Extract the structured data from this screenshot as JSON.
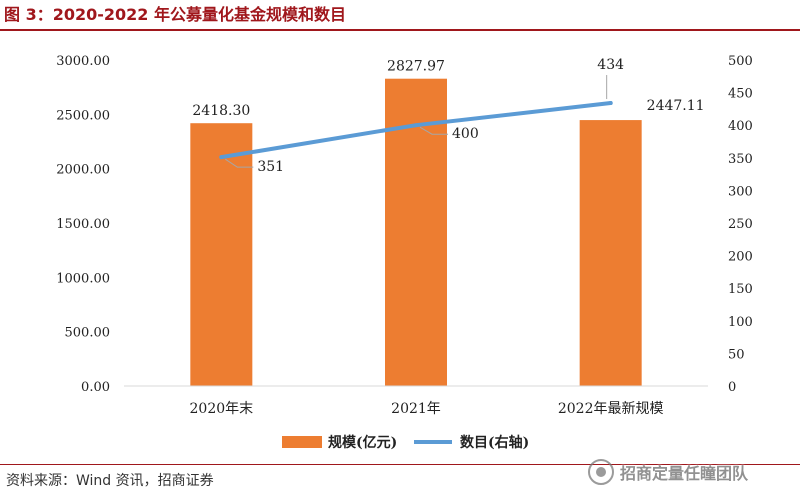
{
  "figure": {
    "title": "图 3：2020-2022 年公募量化基金规模和数目",
    "source": "资料来源：Wind 资讯，招商证券",
    "watermark": "招商定量任瞳团队"
  },
  "chart_data": {
    "type": "bar+line",
    "categories": [
      "2020年末",
      "2021年",
      "2022年最新规模"
    ],
    "series": [
      {
        "name": "规模(亿元)",
        "type": "bar",
        "axis": "left",
        "color": "#ed7d31",
        "values": [
          2418.3,
          2827.97,
          2447.11
        ],
        "labels": [
          "2418.30",
          "2827.97",
          "2447.11"
        ]
      },
      {
        "name": "数目(右轴)",
        "type": "line",
        "axis": "right",
        "color": "#5b9bd5",
        "values": [
          351,
          400,
          434
        ],
        "labels": [
          "351",
          "400",
          "434"
        ]
      }
    ],
    "y_left": {
      "min": 0,
      "max": 3000,
      "ticks": [
        0,
        500,
        1000,
        1500,
        2000,
        2500,
        3000
      ],
      "tick_labels": [
        "0.00",
        "500.00",
        "1000.00",
        "1500.00",
        "2000.00",
        "2500.00",
        "3000.00"
      ]
    },
    "y_right": {
      "min": 0,
      "max": 500,
      "ticks": [
        0,
        50,
        100,
        150,
        200,
        250,
        300,
        350,
        400,
        450,
        500
      ],
      "tick_labels": [
        "0",
        "50",
        "100",
        "150",
        "200",
        "250",
        "300",
        "350",
        "400",
        "450",
        "500"
      ]
    },
    "legend": {
      "position": "bottom"
    },
    "grid": false
  }
}
